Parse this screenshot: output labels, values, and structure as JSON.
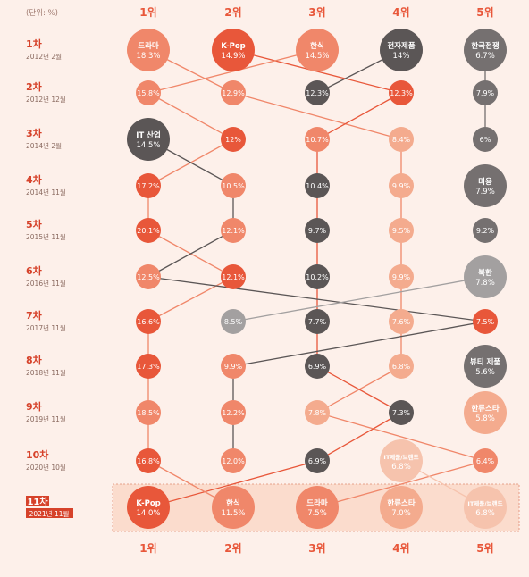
{
  "chart_data": {
    "type": "bump",
    "unit_label": "(단위: %)",
    "rank_labels": [
      "1위",
      "2위",
      "3위",
      "4위",
      "5위"
    ],
    "rounds": [
      {
        "round": "1차",
        "date": "2012년 2월",
        "entries": [
          {
            "rank": 1,
            "label": "드라마",
            "value": "18.3%"
          },
          {
            "rank": 2,
            "label": "K-Pop",
            "value": "14.9%"
          },
          {
            "rank": 3,
            "label": "한식",
            "value": "14.5%"
          },
          {
            "rank": 4,
            "label": "전자제품",
            "value": "14%"
          },
          {
            "rank": 5,
            "label": "한국전쟁",
            "value": "6.7%"
          }
        ]
      },
      {
        "round": "2차",
        "date": "2012년 12월",
        "entries": [
          {
            "rank": 1,
            "label": "",
            "value": "15.8%"
          },
          {
            "rank": 2,
            "label": "",
            "value": "12.9%"
          },
          {
            "rank": 3,
            "label": "",
            "value": "12.3%"
          },
          {
            "rank": 4,
            "label": "",
            "value": "12.3%"
          },
          {
            "rank": 5,
            "label": "",
            "value": "7.9%"
          }
        ]
      },
      {
        "round": "3차",
        "date": "2014년 2월",
        "entries": [
          {
            "rank": 1,
            "label": "IT 산업",
            "value": "14.5%"
          },
          {
            "rank": 2,
            "label": "",
            "value": "12%"
          },
          {
            "rank": 3,
            "label": "",
            "value": "10.7%"
          },
          {
            "rank": 4,
            "label": "",
            "value": "8.4%"
          },
          {
            "rank": 5,
            "label": "",
            "value": "6%"
          }
        ]
      },
      {
        "round": "4차",
        "date": "2014년 11월",
        "entries": [
          {
            "rank": 1,
            "label": "",
            "value": "17.2%"
          },
          {
            "rank": 2,
            "label": "",
            "value": "10.5%"
          },
          {
            "rank": 3,
            "label": "",
            "value": "10.4%"
          },
          {
            "rank": 4,
            "label": "",
            "value": "9.9%"
          },
          {
            "rank": 5,
            "label": "미용",
            "value": "7.9%"
          }
        ]
      },
      {
        "round": "5차",
        "date": "2015년 11월",
        "entries": [
          {
            "rank": 1,
            "label": "",
            "value": "20.1%"
          },
          {
            "rank": 2,
            "label": "",
            "value": "12.1%"
          },
          {
            "rank": 3,
            "label": "",
            "value": "9.7%"
          },
          {
            "rank": 4,
            "label": "",
            "value": "9.5%"
          },
          {
            "rank": 5,
            "label": "",
            "value": "9.2%"
          }
        ]
      },
      {
        "round": "6차",
        "date": "2016년 11월",
        "entries": [
          {
            "rank": 1,
            "label": "",
            "value": "12.5%"
          },
          {
            "rank": 2,
            "label": "",
            "value": "12.1%"
          },
          {
            "rank": 3,
            "label": "",
            "value": "10.2%"
          },
          {
            "rank": 4,
            "label": "",
            "value": "9.9%"
          },
          {
            "rank": 5,
            "label": "북한",
            "value": "7.8%"
          }
        ]
      },
      {
        "round": "7차",
        "date": "2017년 11월",
        "entries": [
          {
            "rank": 1,
            "label": "",
            "value": "16.6%"
          },
          {
            "rank": 2,
            "label": "",
            "value": "8.5%"
          },
          {
            "rank": 3,
            "label": "",
            "value": "7.7%"
          },
          {
            "rank": 4,
            "label": "",
            "value": "7.6%"
          },
          {
            "rank": 5,
            "label": "",
            "value": "7.5%"
          }
        ]
      },
      {
        "round": "8차",
        "date": "2018년 11월",
        "entries": [
          {
            "rank": 1,
            "label": "",
            "value": "17.3%"
          },
          {
            "rank": 2,
            "label": "",
            "value": "9.9%"
          },
          {
            "rank": 3,
            "label": "",
            "value": "6.9%"
          },
          {
            "rank": 4,
            "label": "",
            "value": "6.8%"
          },
          {
            "rank": 5,
            "label": "뷰티 제품",
            "value": "5.6%"
          }
        ]
      },
      {
        "round": "9차",
        "date": "2019년 11월",
        "entries": [
          {
            "rank": 1,
            "label": "",
            "value": "18.5%"
          },
          {
            "rank": 2,
            "label": "",
            "value": "12.2%"
          },
          {
            "rank": 3,
            "label": "",
            "value": "7.8%"
          },
          {
            "rank": 4,
            "label": "",
            "value": "7.3%"
          },
          {
            "rank": 5,
            "label": "한류스타",
            "value": "5.8%"
          }
        ]
      },
      {
        "round": "10차",
        "date": "2020년 10월",
        "entries": [
          {
            "rank": 1,
            "label": "",
            "value": "16.8%"
          },
          {
            "rank": 2,
            "label": "",
            "value": "12.0%"
          },
          {
            "rank": 3,
            "label": "",
            "value": "6.9%"
          },
          {
            "rank": 4,
            "label": "IT제품/브랜드",
            "value": "6.8%"
          },
          {
            "rank": 5,
            "label": "",
            "value": "6.4%"
          }
        ]
      },
      {
        "round": "11차",
        "date": "2021년 11월",
        "highlight": true,
        "entries": [
          {
            "rank": 1,
            "label": "K-Pop",
            "value": "14.0%"
          },
          {
            "rank": 2,
            "label": "한식",
            "value": "11.5%"
          },
          {
            "rank": 3,
            "label": "드라마",
            "value": "7.5%"
          },
          {
            "rank": 4,
            "label": "한류스타",
            "value": "7.0%"
          },
          {
            "rank": 5,
            "label": "IT제품/브랜드",
            "value": "6.8%"
          }
        ]
      }
    ],
    "series": [
      {
        "name": "드라마",
        "ranks": [
          1,
          2,
          4,
          4,
          4,
          4,
          4,
          4,
          3,
          5,
          3
        ]
      },
      {
        "name": "K-Pop",
        "ranks": [
          2,
          4,
          3,
          3,
          3,
          3,
          3,
          3,
          4,
          3,
          1
        ]
      },
      {
        "name": "한식",
        "ranks": [
          3,
          1,
          2,
          1,
          1,
          2,
          1,
          1,
          1,
          1,
          2
        ]
      },
      {
        "name": "전자제품",
        "ranks": [
          4,
          3
        ]
      },
      {
        "name": "한국전쟁",
        "ranks": [
          5,
          5,
          5
        ]
      },
      {
        "name": "IT 산업",
        "ranks": [
          null,
          null,
          1,
          2,
          2,
          1,
          5,
          2,
          2,
          2
        ]
      },
      {
        "name": "북한",
        "ranks": [
          null,
          null,
          null,
          null,
          null,
          5,
          2
        ]
      },
      {
        "name": "IT제품/브랜드",
        "ranks": [
          null,
          null,
          null,
          null,
          null,
          null,
          null,
          null,
          null,
          4,
          5
        ]
      }
    ],
    "colors": {
      "red": "#e8573a",
      "coral": "#f0876a",
      "salmon": "#f4ab8e",
      "light": "#f6c3ad",
      "dark": "#5b5656",
      "gray": "#757070",
      "light_gray": "#a3a0a0",
      "highlight_bg": "#fbdccd",
      "rank_label": "#e8573a",
      "round_label": "#d6422a",
      "date_label": "#8a6a60"
    }
  }
}
